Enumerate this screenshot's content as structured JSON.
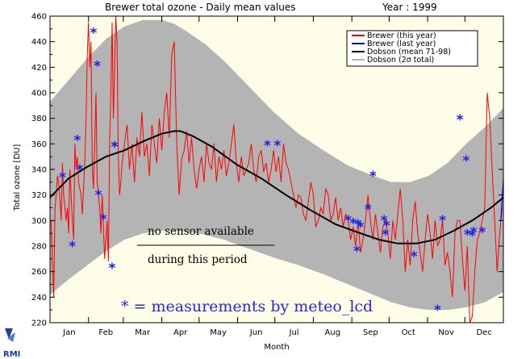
{
  "chart_data": {
    "type": "line",
    "title": "Brewer total ozone - Daily mean values",
    "year_label": "Year : 1999",
    "xlabel": "Month",
    "ylabel": "Total ozone  [DU]",
    "ylim": [
      220,
      460
    ],
    "yticks": [
      220,
      240,
      260,
      280,
      300,
      320,
      340,
      360,
      380,
      400,
      420,
      440,
      460
    ],
    "months": [
      "Jan",
      "Feb",
      "Mar",
      "Apr",
      "May",
      "Jun",
      "Jul",
      "Aug",
      "Sep",
      "Oct",
      "Nov",
      "Dec"
    ],
    "xlim_day": [
      0,
      365
    ],
    "legend_placement": "top-right",
    "legend": [
      {
        "label": "Brewer (this year)",
        "color": "#ff0000"
      },
      {
        "label": "Brewer (last year)",
        "color": "#0000ff"
      },
      {
        "label": "Dobson (mean 71-98)",
        "color": "#000000"
      },
      {
        "label": "Dobson (2σ total)",
        "color": "#b4b4b4"
      }
    ],
    "dobson_mean": {
      "x": [
        0,
        15,
        30,
        45,
        60,
        75,
        90,
        100,
        105,
        115,
        130,
        150,
        170,
        190,
        210,
        230,
        250,
        265,
        280,
        295,
        310,
        325,
        340,
        355,
        365
      ],
      "y": [
        318,
        333,
        342,
        350,
        355,
        362,
        368,
        370,
        370,
        366,
        358,
        344,
        333,
        320,
        308,
        297,
        290,
        285,
        282,
        282,
        285,
        292,
        300,
        310,
        318
      ]
    },
    "dobson_2sigma_upper": {
      "x": [
        0,
        15,
        30,
        45,
        60,
        75,
        90,
        100,
        110,
        125,
        140,
        160,
        180,
        200,
        220,
        240,
        260,
        275,
        290,
        305,
        320,
        335,
        350,
        365
      ],
      "y": [
        393,
        410,
        427,
        442,
        452,
        457,
        457,
        454,
        448,
        438,
        425,
        405,
        385,
        368,
        355,
        343,
        335,
        330,
        330,
        335,
        345,
        360,
        373,
        388
      ]
    },
    "dobson_2sigma_lower": {
      "x": [
        0,
        15,
        30,
        45,
        60,
        75,
        90,
        105,
        120,
        140,
        160,
        180,
        200,
        220,
        240,
        260,
        275,
        290,
        305,
        320,
        335,
        350,
        365
      ],
      "y": [
        242,
        254,
        265,
        276,
        285,
        290,
        292,
        292,
        290,
        285,
        278,
        271,
        265,
        258,
        250,
        242,
        236,
        232,
        230,
        230,
        232,
        236,
        244
      ]
    },
    "brewer_this_year": {
      "x": [
        1,
        2,
        3,
        4,
        5,
        6,
        7,
        9,
        10,
        11,
        13,
        14,
        15,
        16,
        18,
        19,
        20,
        21,
        22,
        23,
        25,
        26,
        28,
        29,
        30,
        31,
        32,
        33,
        34,
        35,
        36,
        37,
        38,
        40,
        41,
        42,
        44,
        46,
        47,
        48,
        49,
        50,
        51,
        52,
        53,
        54,
        55,
        56,
        57,
        58,
        60,
        62,
        64,
        66,
        68,
        70,
        72,
        74,
        76,
        78,
        80,
        82,
        84,
        86,
        88,
        90,
        92,
        94,
        96,
        98,
        100,
        102,
        104,
        106,
        108,
        110,
        112,
        114,
        116,
        118,
        120,
        122,
        124,
        126,
        128,
        130,
        132,
        134,
        136,
        138,
        140,
        142,
        144,
        146,
        148,
        150,
        152,
        154,
        156,
        158,
        160,
        162,
        164,
        166,
        168,
        170,
        172,
        174,
        176,
        178,
        180,
        182,
        184,
        186,
        188,
        190,
        192,
        194,
        196,
        198,
        200,
        202,
        204,
        206,
        208,
        210,
        212,
        214,
        216,
        218,
        220,
        222,
        224,
        226,
        228,
        230,
        232,
        234,
        236,
        238,
        240,
        242,
        244,
        246,
        248,
        250,
        252,
        254,
        256,
        258,
        260,
        262,
        264,
        266,
        268,
        270,
        272,
        274,
        276,
        278,
        280,
        282,
        284,
        286,
        288,
        290,
        292,
        294,
        296,
        298,
        300,
        302,
        304,
        306,
        308,
        310,
        312,
        314,
        316,
        318,
        320,
        322,
        324,
        326,
        328,
        330,
        332,
        334,
        336,
        338,
        340,
        342,
        344,
        346,
        348,
        350,
        352,
        354,
        356,
        358,
        360,
        362,
        364
      ],
      "y": [
        300,
        265,
        240,
        310,
        320,
        335,
        330,
        300,
        345,
        320,
        300,
        310,
        290,
        340,
        300,
        285,
        360,
        340,
        350,
        330,
        320,
        305,
        345,
        380,
        430,
        455,
        420,
        440,
        340,
        325,
        360,
        400,
        330,
        310,
        290,
        320,
        270,
        300,
        268,
        360,
        400,
        455,
        380,
        420,
        460,
        440,
        350,
        320,
        330,
        345,
        360,
        375,
        340,
        360,
        330,
        365,
        350,
        385,
        350,
        360,
        335,
        375,
        360,
        345,
        380,
        355,
        385,
        400,
        365,
        430,
        440,
        360,
        320,
        348,
        355,
        370,
        345,
        365,
        340,
        325,
        340,
        350,
        330,
        360,
        345,
        340,
        360,
        330,
        350,
        340,
        355,
        335,
        345,
        360,
        375,
        345,
        330,
        350,
        335,
        340,
        345,
        360,
        340,
        330,
        350,
        355,
        338,
        345,
        330,
        340,
        355,
        338,
        350,
        330,
        360,
        345,
        340,
        330,
        320,
        310,
        320,
        318,
        305,
        300,
        315,
        330,
        320,
        295,
        300,
        310,
        305,
        325,
        320,
        300,
        305,
        318,
        300,
        310,
        295,
        305,
        300,
        285,
        295,
        280,
        300,
        275,
        285,
        300,
        320,
        300,
        285,
        305,
        290,
        275,
        295,
        300,
        290,
        270,
        300,
        285,
        305,
        325,
        300,
        260,
        285,
        265,
        300,
        315,
        290,
        275,
        260,
        285,
        305,
        290,
        270,
        300,
        280,
        285,
        300,
        265,
        275,
        260,
        240,
        290,
        300,
        300,
        270,
        245,
        280,
        220,
        225,
        260,
        285,
        290,
        300,
        310,
        400,
        380,
        340,
        300,
        260,
        290,
        310
      ]
    },
    "brewer_last_year": {
      "x": [
        363,
        364,
        365
      ],
      "y": [
        300,
        318,
        332
      ]
    },
    "meteo_lcd_points": {
      "x": [
        10,
        18,
        22,
        24,
        35,
        38,
        39,
        43,
        50,
        52,
        52,
        175,
        183,
        240,
        244,
        247,
        248,
        250,
        256,
        260,
        269,
        270,
        271,
        293,
        312,
        316,
        330,
        335,
        336,
        340,
        341,
        348
      ],
      "y": [
        336,
        282,
        365,
        342,
        449,
        423,
        322,
        303,
        265,
        360,
        360,
        361,
        361,
        302,
        300,
        278,
        299,
        297,
        311,
        337,
        302,
        291,
        298,
        274,
        232,
        302,
        381,
        349,
        291,
        290,
        293,
        293
      ]
    },
    "annotations": {
      "no_sensor_line1": "no sensor available",
      "no_sensor_line2": "during this period",
      "meteo_note": "* = measurements by meteo_lcd",
      "logo": "RMI"
    }
  }
}
